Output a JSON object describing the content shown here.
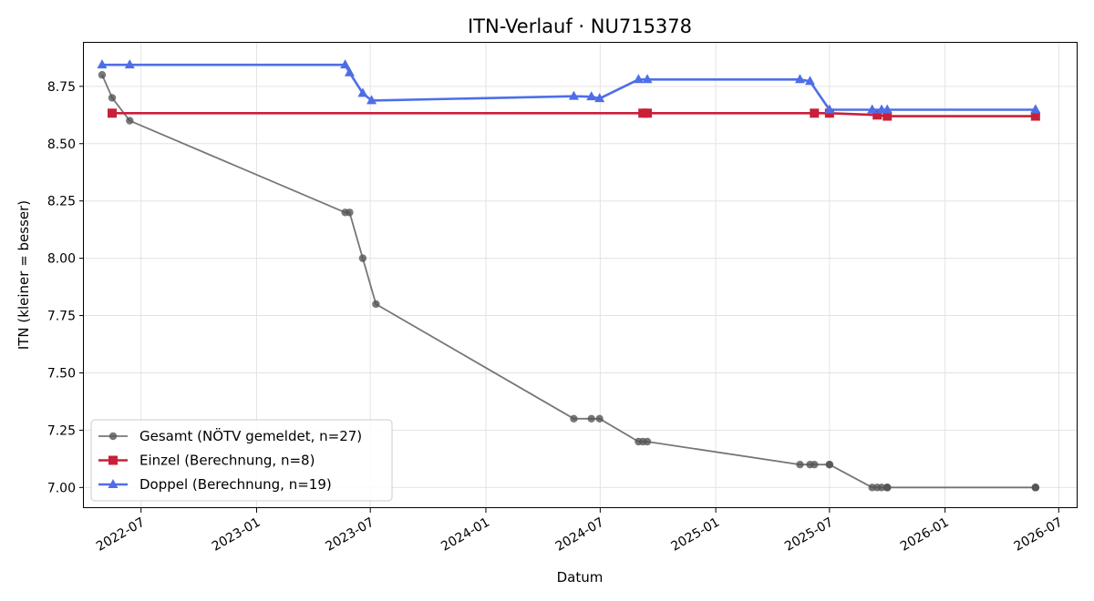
{
  "chart_data": {
    "type": "line",
    "title": "ITN-Verlauf · NU715378",
    "xlabel": "Datum",
    "ylabel": "ITN  (kleiner = besser)",
    "xlim": [
      "2022-04-01",
      "2026-07-31"
    ],
    "ylim": [
      6.91,
      8.94
    ],
    "x_ticks": [
      "2022-07",
      "2023-01",
      "2023-07",
      "2024-01",
      "2024-07",
      "2025-01",
      "2025-07",
      "2026-01",
      "2026-07"
    ],
    "y_ticks": [
      7.0,
      7.25,
      7.5,
      7.75,
      8.0,
      8.25,
      8.5,
      8.75
    ],
    "y_tick_labels": [
      "7.00",
      "7.25",
      "7.50",
      "7.75",
      "8.00",
      "8.25",
      "8.50",
      "8.75"
    ],
    "grid": true,
    "legend_position": "lower-left",
    "series": [
      {
        "name": "Gesamt (NÖTV gemeldet, n=27)",
        "color": "#555555",
        "marker": "circle",
        "points": [
          [
            "2022-04-30",
            8.8
          ],
          [
            "2022-05-16",
            8.7
          ],
          [
            "2022-06-13",
            8.6
          ],
          [
            "2023-05-22",
            8.2
          ],
          [
            "2023-05-29",
            8.2
          ],
          [
            "2023-06-19",
            8.0
          ],
          [
            "2023-07-10",
            7.8
          ],
          [
            "2024-05-20",
            7.3
          ],
          [
            "2024-06-17",
            7.3
          ],
          [
            "2024-06-30",
            7.3
          ],
          [
            "2024-08-31",
            7.2
          ],
          [
            "2024-09-07",
            7.2
          ],
          [
            "2024-09-14",
            7.2
          ],
          [
            "2025-05-15",
            7.1
          ],
          [
            "2025-05-31",
            7.1
          ],
          [
            "2025-06-07",
            7.1
          ],
          [
            "2025-07-01",
            7.1
          ],
          [
            "2025-07-01",
            7.1
          ],
          [
            "2025-09-07",
            7.0
          ],
          [
            "2025-09-15",
            7.0
          ],
          [
            "2025-09-22",
            7.0
          ],
          [
            "2025-10-01",
            7.0
          ],
          [
            "2025-10-01",
            7.0
          ],
          [
            "2025-10-01",
            7.0
          ],
          [
            "2026-05-25",
            7.0
          ],
          [
            "2026-05-25",
            7.0
          ],
          [
            "2026-05-25",
            7.0
          ]
        ]
      },
      {
        "name": "Einzel (Berechnung, n=8)",
        "color": "#c8203a",
        "marker": "square",
        "points": [
          [
            "2022-05-16",
            8.633
          ],
          [
            "2024-09-07",
            8.633
          ],
          [
            "2024-09-14",
            8.633
          ],
          [
            "2025-06-07",
            8.633
          ],
          [
            "2025-07-01",
            8.633
          ],
          [
            "2025-09-15",
            8.625
          ],
          [
            "2025-10-01",
            8.62
          ],
          [
            "2026-05-25",
            8.62
          ]
        ]
      },
      {
        "name": "Doppel (Berechnung, n=19)",
        "color": "#4e6ee8",
        "marker": "triangle",
        "points": [
          [
            "2022-04-30",
            8.844
          ],
          [
            "2022-06-13",
            8.844
          ],
          [
            "2023-05-22",
            8.844
          ],
          [
            "2023-05-29",
            8.81
          ],
          [
            "2023-06-19",
            8.72
          ],
          [
            "2023-07-03",
            8.688
          ],
          [
            "2024-05-20",
            8.707
          ],
          [
            "2024-06-17",
            8.705
          ],
          [
            "2024-06-30",
            8.697
          ],
          [
            "2024-08-31",
            8.78
          ],
          [
            "2024-09-14",
            8.78
          ],
          [
            "2025-05-15",
            8.78
          ],
          [
            "2025-05-31",
            8.772
          ],
          [
            "2025-07-01",
            8.648
          ],
          [
            "2025-09-07",
            8.648
          ],
          [
            "2025-09-22",
            8.648
          ],
          [
            "2025-10-01",
            8.648
          ],
          [
            "2026-05-25",
            8.648
          ],
          [
            "2026-05-25",
            8.648
          ]
        ]
      }
    ]
  }
}
